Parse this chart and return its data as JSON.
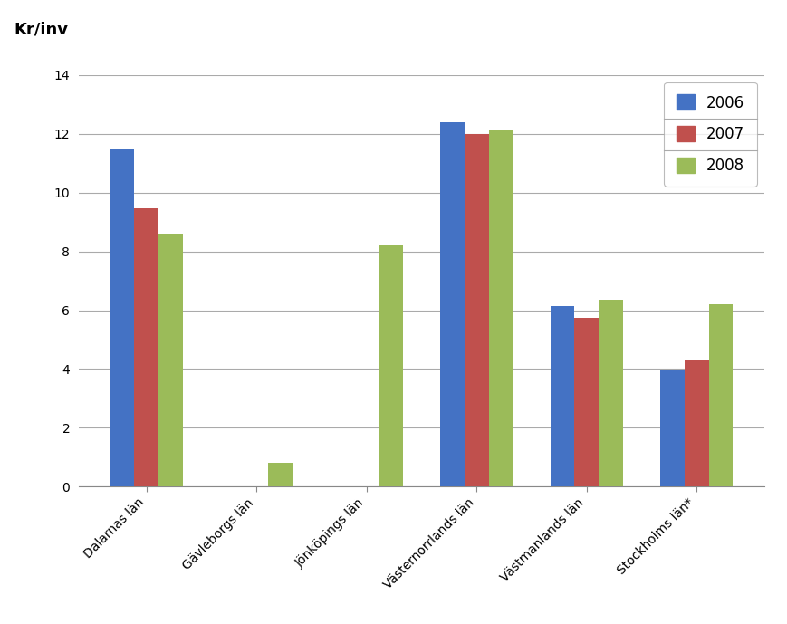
{
  "categories": [
    "Dalarnas län",
    "Gävleborgs län",
    "Jönköpings län",
    "Västernorrlands län",
    "Västmanlands län",
    "Stockholms län*"
  ],
  "series": {
    "2006": [
      11.5,
      null,
      null,
      12.4,
      6.15,
      3.95
    ],
    "2007": [
      9.45,
      null,
      null,
      12.0,
      5.75,
      4.3
    ],
    "2008": [
      8.6,
      0.8,
      8.2,
      12.15,
      6.35,
      6.2
    ]
  },
  "colors": {
    "2006": "#4472C4",
    "2007": "#C0504D",
    "2008": "#9BBB59"
  },
  "ylabel": "Kr/inv",
  "ylim": [
    0,
    14
  ],
  "yticks": [
    0,
    2,
    4,
    6,
    8,
    10,
    12,
    14
  ],
  "legend_labels": [
    "2006",
    "2007",
    "2008"
  ],
  "bar_width": 0.22,
  "background_color": "#FFFFFF",
  "grid_color": "#AAAAAA",
  "ylabel_fontsize": 13,
  "tick_fontsize": 10,
  "legend_fontsize": 12
}
